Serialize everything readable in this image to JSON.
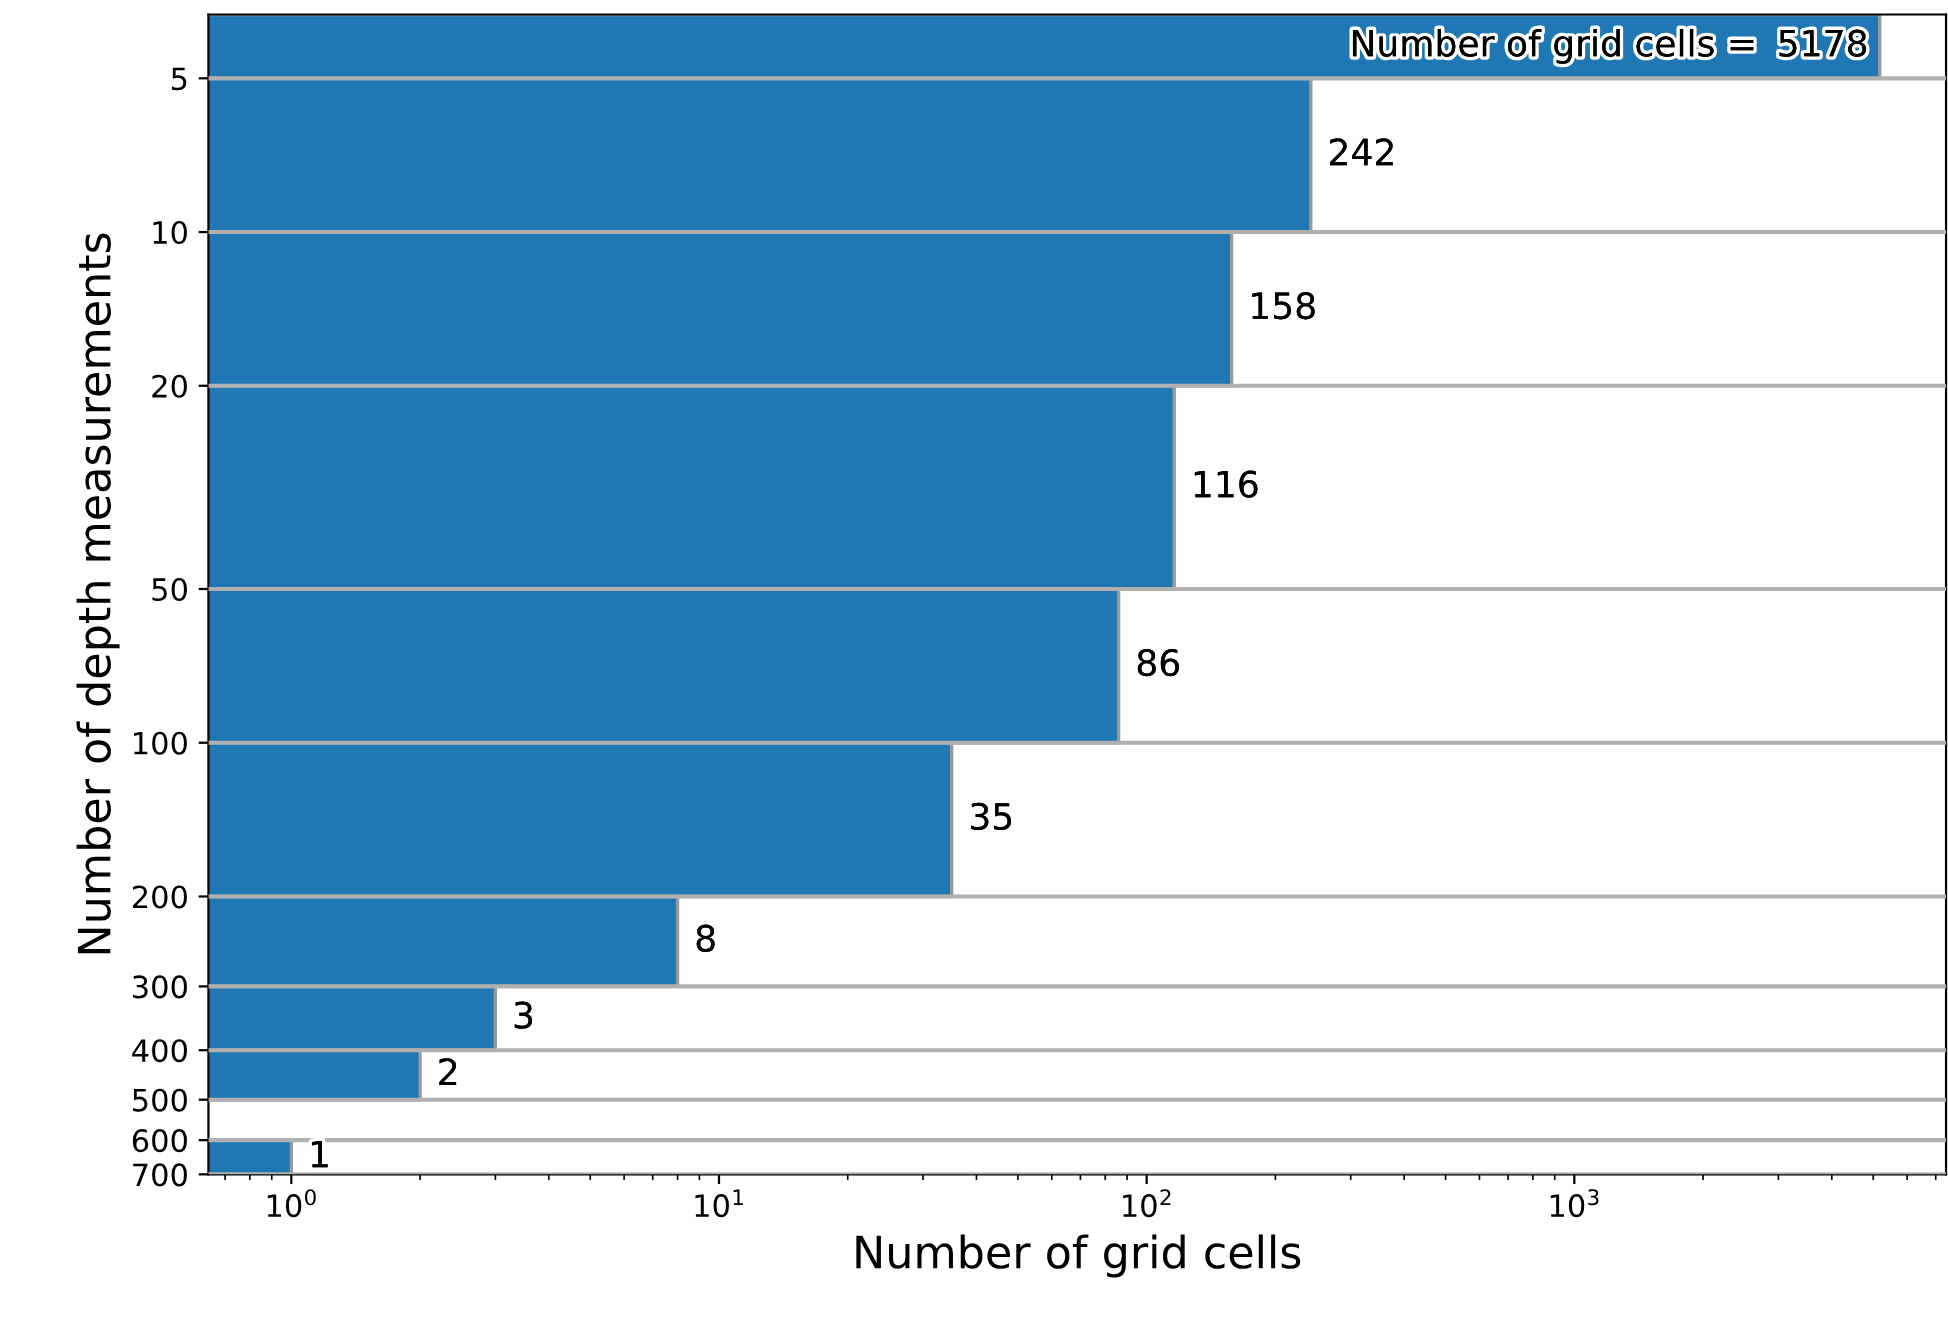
{
  "chart_data": {
    "type": "histogram",
    "orientation": "horizontal",
    "xlabel": "Number of grid cells",
    "ylabel": "Number of depth measurements",
    "bins": [
      3.75,
      5,
      10,
      20,
      50,
      100,
      200,
      300,
      400,
      500,
      600,
      700
    ],
    "values": [
      5178,
      242,
      158,
      116,
      86,
      35,
      8,
      3,
      2,
      null,
      1
    ],
    "value_labels": [
      "5178",
      "242",
      "158",
      "116",
      "86",
      "35",
      "8",
      "3",
      "2",
      null,
      "1"
    ],
    "annotations": [
      "Number of grid cells ="
    ],
    "color": "#1f77b4",
    "log": "xy",
    "xlim": [
      0.64,
      7400
    ],
    "xticks": [
      {
        "value": 1,
        "label": "10$^{0}$"
      },
      {
        "value": 10,
        "label": "10$^{1}$"
      },
      {
        "value": 100,
        "label": "10$^{2}$"
      },
      {
        "value": 1000,
        "label": "10$^{3}$"
      }
    ],
    "ylim": [
      700,
      3.75
    ],
    "yticks": [
      5,
      10,
      20,
      50,
      100,
      200,
      300,
      400,
      500,
      600,
      700
    ],
    "grid": "y"
  }
}
